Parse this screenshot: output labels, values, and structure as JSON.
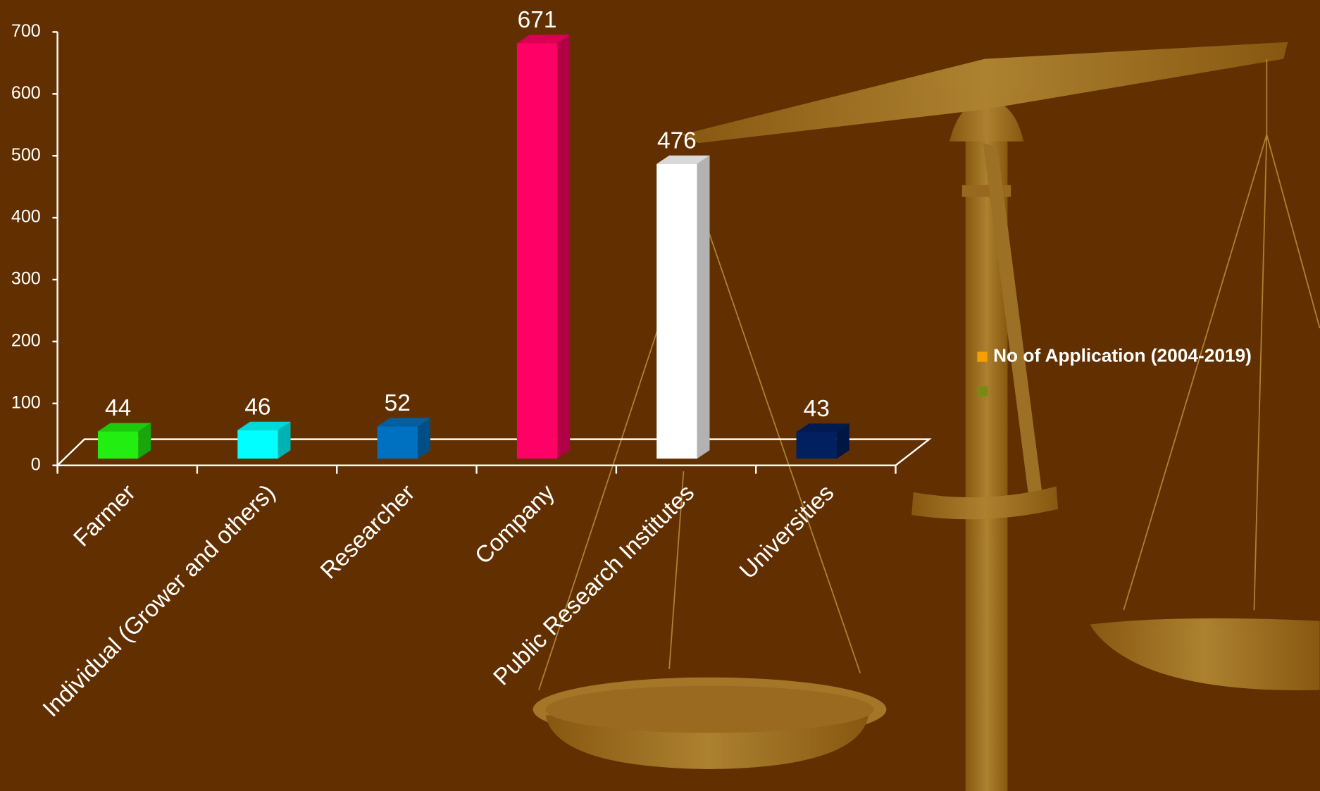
{
  "chart_data": {
    "type": "bar3d",
    "categories": [
      "Farmer",
      "Individual (Grower and others)",
      "Researcher",
      "Company",
      "Public Research Institutes",
      "Universities"
    ],
    "series": [
      {
        "name": "No of Application (2004-2019)",
        "color": "#f5a000",
        "values": [
          44,
          46,
          52,
          671,
          476,
          43
        ],
        "colors": [
          "#22ee11",
          "#00ffff",
          "#0070c0",
          "#ff0066",
          "#ffffff",
          "#002060"
        ]
      }
    ],
    "ylim": [
      0,
      700
    ],
    "yticks": [
      0,
      100,
      200,
      300,
      400,
      500,
      600,
      700
    ],
    "legend": "right"
  }
}
